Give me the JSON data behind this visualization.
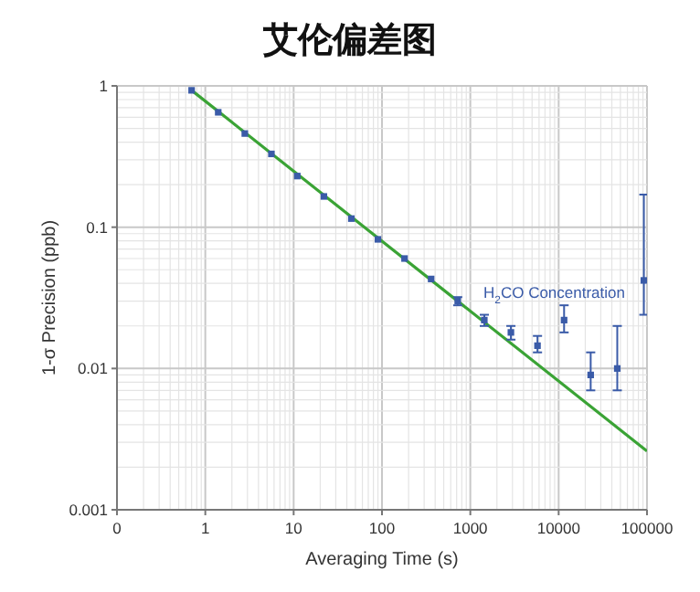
{
  "chart_data": {
    "type": "scatter",
    "title": "艾伦偏差图",
    "xlabel": "Averaging Time (s)",
    "ylabel": "1-σ Precision (ppb)",
    "log": "xy",
    "grid": true,
    "annotations": [
      "H$_{2}$CO Concentration"
    ],
    "xlim": [
      0.1,
      100000
    ],
    "xticks": [
      {
        "value": 0.1,
        "label": "0"
      },
      1,
      10,
      100,
      1000,
      10000,
      100000
    ],
    "ylim": [
      0.001,
      1
    ],
    "yticks": [
      0.001,
      0.01,
      0.1,
      1
    ],
    "series": [
      {
        "marker": "square",
        "color": "#3a5ba8",
        "x": [
          0.7,
          1.4,
          2.8,
          5.6,
          11,
          22,
          45,
          90,
          180,
          360,
          720,
          1440,
          2880,
          5760,
          11520,
          23040,
          46080,
          92160
        ],
        "values": [
          0.93,
          0.65,
          0.46,
          0.33,
          0.23,
          0.165,
          0.115,
          0.082,
          0.06,
          0.043,
          0.03,
          0.022,
          0.018,
          0.0145,
          0.022,
          0.009,
          0.01,
          0.042
        ],
        "errors": [
          null,
          null,
          null,
          null,
          null,
          null,
          null,
          null,
          null,
          null,
          [
            0.028,
            0.032
          ],
          [
            0.02,
            0.024
          ],
          [
            0.016,
            0.02
          ],
          [
            0.013,
            0.017
          ],
          [
            0.018,
            0.028
          ],
          [
            0.007,
            0.013
          ],
          [
            0.007,
            0.02
          ],
          [
            0.024,
            0.17
          ]
        ]
      },
      {
        "type": "line",
        "color": "#3aa335",
        "x": [
          0.7,
          100000
        ],
        "values": [
          0.93,
          0.0026
        ]
      }
    ]
  }
}
